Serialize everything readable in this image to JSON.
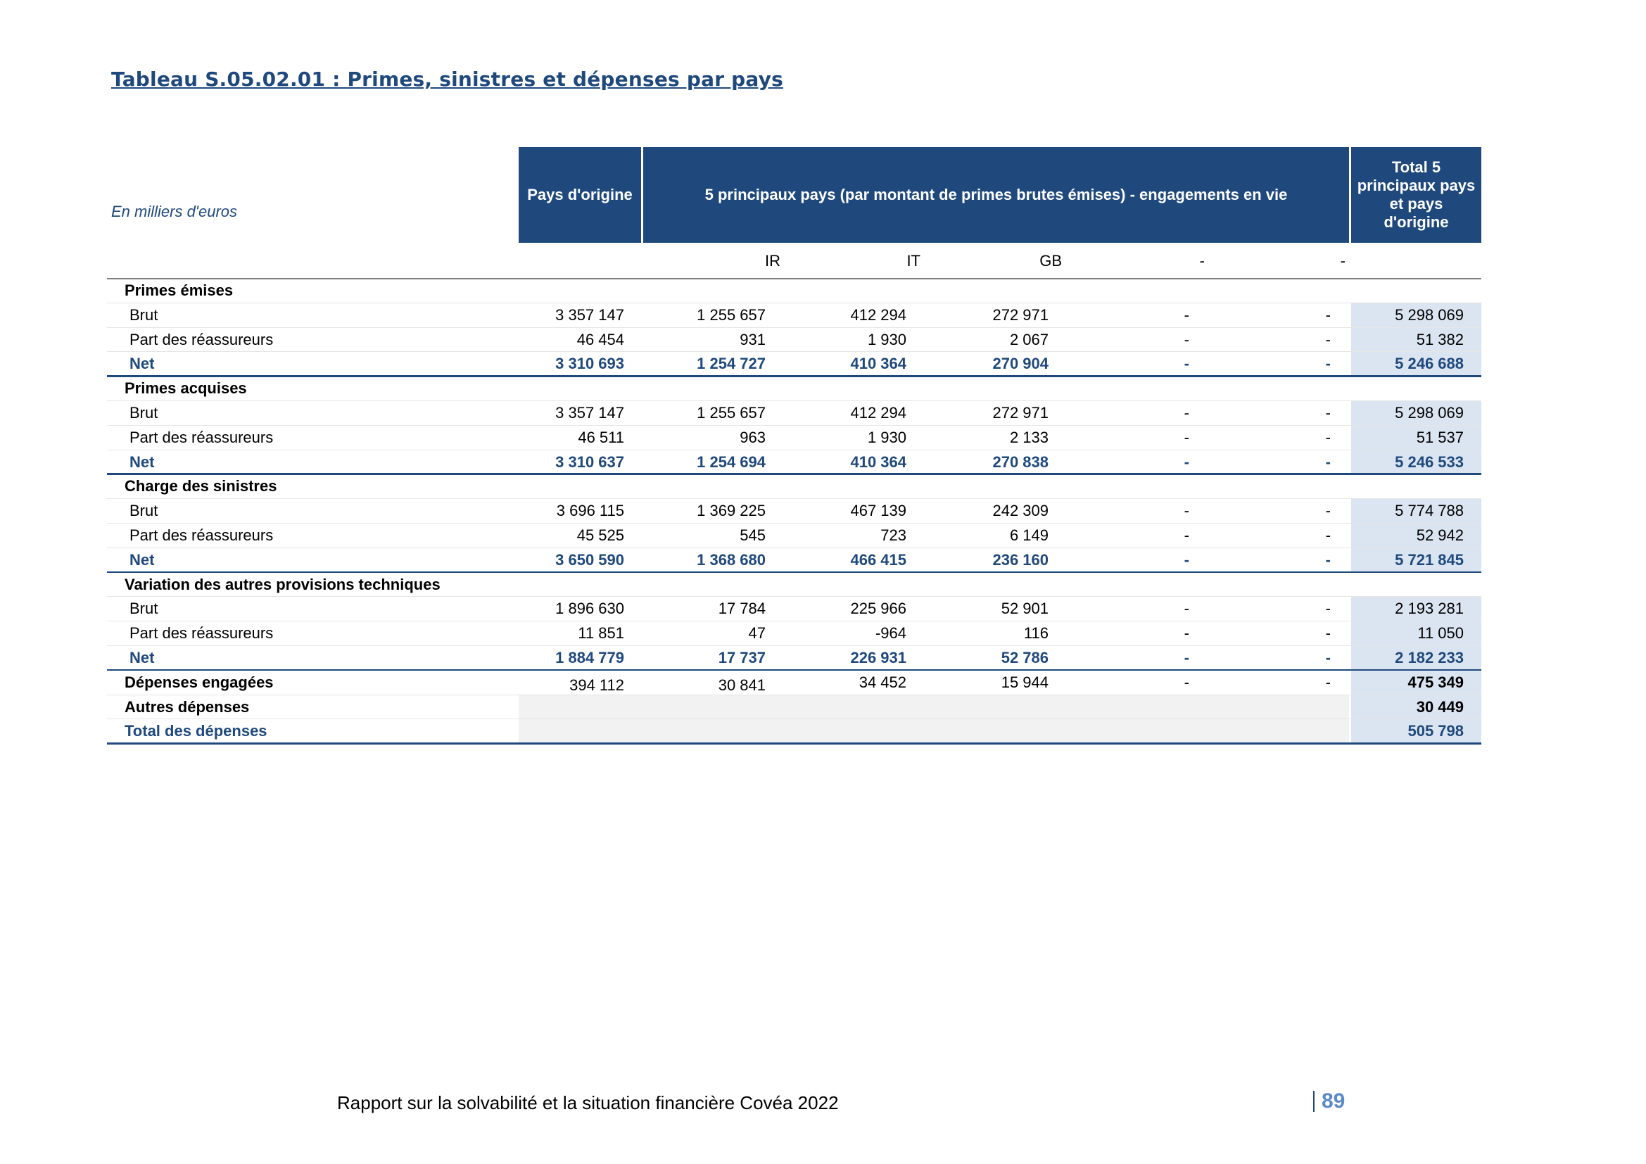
{
  "title": "Tableau S.05.02.01 : Primes, sinistres et dépenses par pays",
  "unit_label": "En milliers d'euros",
  "headers": {
    "origin": "Pays d'origine",
    "top5": "5 principaux pays (par montant de primes brutes émises) - engagements en vie",
    "total": "Total 5 principaux pays et pays d'origine"
  },
  "countries": [
    "IR",
    "IT",
    "GB",
    "-",
    "-"
  ],
  "sections": [
    {
      "label": "Primes émises",
      "rows": [
        {
          "label": "Brut",
          "values": [
            "3 357 147",
            "1 255 657",
            "412 294",
            "272 971",
            "-",
            "-",
            "5 298 069"
          ]
        },
        {
          "label": "Part des réassureurs",
          "values": [
            "46 454",
            "931",
            "1 930",
            "2 067",
            "-",
            "-",
            "51 382"
          ]
        },
        {
          "label": "Net",
          "values": [
            "3 310 693",
            "1 254 727",
            "410 364",
            "270 904",
            "-",
            "-",
            "5 246 688"
          ]
        }
      ]
    },
    {
      "label": "Primes acquises",
      "rows": [
        {
          "label": "Brut",
          "values": [
            "3 357 147",
            "1 255 657",
            "412 294",
            "272 971",
            "-",
            "-",
            "5 298 069"
          ]
        },
        {
          "label": "Part des réassureurs",
          "values": [
            "46 511",
            "963",
            "1 930",
            "2 133",
            "-",
            "-",
            "51 537"
          ]
        },
        {
          "label": "Net",
          "values": [
            "3 310 637",
            "1 254 694",
            "410 364",
            "270 838",
            "-",
            "-",
            "5 246 533"
          ]
        }
      ]
    },
    {
      "label": "Charge des sinistres",
      "rows": [
        {
          "label": "Brut",
          "values": [
            "3 696 115",
            "1 369 225",
            "467 139",
            "242 309",
            "-",
            "-",
            "5 774 788"
          ]
        },
        {
          "label": "Part des réassureurs",
          "values": [
            "45 525",
            "545",
            "723",
            "6 149",
            "-",
            "-",
            "52 942"
          ]
        },
        {
          "label": "Net",
          "values": [
            "3 650 590",
            "1 368 680",
            "466 415",
            "236 160",
            "-",
            "-",
            "5 721 845"
          ]
        }
      ]
    },
    {
      "label": "Variation des autres provisions techniques",
      "rows": [
        {
          "label": "Brut",
          "values": [
            "1 896 630",
            "17 784",
            "225 966",
            "52 901",
            "-",
            "-",
            "2 193 281"
          ]
        },
        {
          "label": "Part des réassureurs",
          "values": [
            "11 851",
            "47",
            "-964",
            "116",
            "-",
            "-",
            "11 050"
          ]
        },
        {
          "label": "Net",
          "values": [
            "1 884 779",
            "17 737",
            "226 931",
            "52 786",
            "-",
            "-",
            "2 182 233"
          ]
        }
      ]
    }
  ],
  "expenses": {
    "incurred": {
      "label": "Dépenses engagées",
      "values": [
        "394 112",
        "30 841",
        "34 452",
        "15 944",
        "-",
        "-",
        "475 349"
      ]
    },
    "other": {
      "label": "Autres dépenses",
      "total": "30 449"
    },
    "total": {
      "label": "Total des dépenses",
      "total": "505 798"
    }
  },
  "footer": {
    "text": "Rapport sur la solvabilité et la situation financière Covéa 2022",
    "page": "89"
  },
  "colors": {
    "header_bg": "#1f497d",
    "total_bg": "#dbe5f1",
    "grey_bg": "#f2f2f2",
    "net_text": "#1f497d",
    "page_number": "#5b8ac6"
  }
}
